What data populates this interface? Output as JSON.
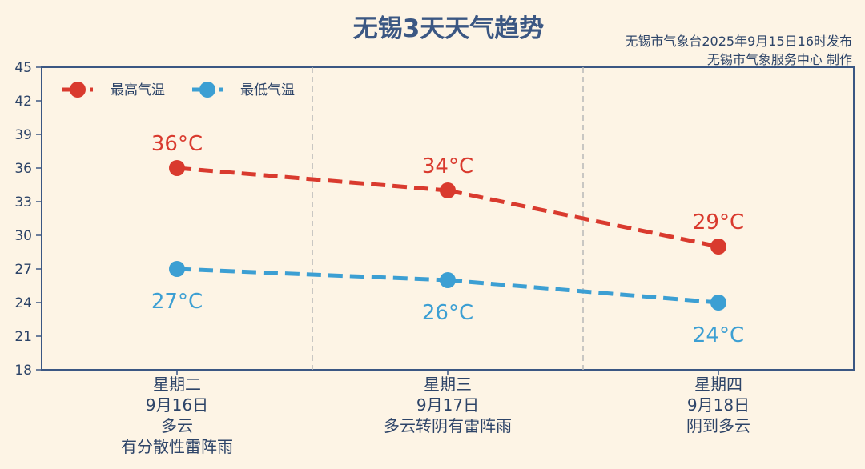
{
  "header": {
    "title": "无锡3天天气趋势",
    "credit_line1": "无锡市气象台2025年9月15日16时发布",
    "credit_line2": "无锡市气象服务中心 制作"
  },
  "chart_data": {
    "type": "line",
    "ylim": [
      18,
      45
    ],
    "yticks": [
      "18",
      "21",
      "24",
      "27",
      "30",
      "33",
      "36",
      "39",
      "42",
      "45"
    ],
    "categories": [
      {
        "weekday": "星期二",
        "date": "9月16日",
        "weather_lines": [
          "多云",
          "有分散性雷阵雨"
        ]
      },
      {
        "weekday": "星期三",
        "date": "9月17日",
        "weather_lines": [
          "多云转阴有雷阵雨"
        ]
      },
      {
        "weekday": "星期四",
        "date": "9月18日",
        "weather_lines": [
          "阴到多云"
        ]
      }
    ],
    "series": [
      {
        "name": "最高气温",
        "values": [
          36,
          34,
          29
        ],
        "labels": [
          "36°C",
          "34°C",
          "29°C"
        ],
        "color": "#d93a2e",
        "label_position": "above"
      },
      {
        "name": "最低气温",
        "values": [
          27,
          26,
          24
        ],
        "labels": [
          "27°C",
          "26°C",
          "24°C"
        ],
        "color": "#3c9fd3",
        "label_position": "below"
      }
    ],
    "line_style": "dashed",
    "legend_position": "top-left",
    "grid": false,
    "axis_color": "#3b5783"
  }
}
